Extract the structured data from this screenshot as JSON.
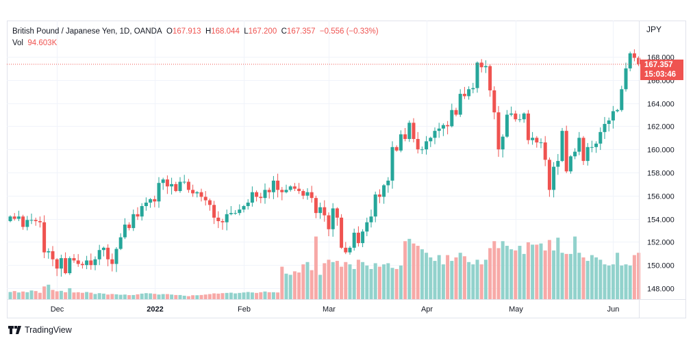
{
  "header": {
    "symbol": "British Pound / Japanese Yen, 1D, OANDA",
    "o_label": "O",
    "o": "167.913",
    "h_label": "H",
    "h": "168.044",
    "l_label": "L",
    "l": "167.200",
    "c_label": "C",
    "c": "167.357",
    "change": "−0.556 (−0.33%)",
    "vol_label": "Vol",
    "vol": "94.603K"
  },
  "price_axis": {
    "currency": "JPY",
    "current_price": "167.357",
    "countdown": "15:03:46"
  },
  "branding": {
    "logo_text": "TradingView"
  },
  "colors": {
    "up": "#26a69a",
    "down": "#ef5350",
    "vol_up": "#92d2cc",
    "vol_down": "#f7a9a7"
  },
  "chart_data": {
    "type": "candlestick",
    "title": "British Pound / Japanese Yen, 1D, OANDA",
    "ylim": [
      147,
      170
    ],
    "y_ticks": [
      "148.000",
      "150.000",
      "152.000",
      "154.000",
      "156.000",
      "158.000",
      "160.000",
      "162.000",
      "164.000",
      "166.000",
      "168.000"
    ],
    "x_ticks": [
      {
        "label": "Dec",
        "index": 11
      },
      {
        "label": "2022",
        "index": 34
      },
      {
        "label": "Feb",
        "index": 55
      },
      {
        "label": "Mar",
        "index": 75
      },
      {
        "label": "Apr",
        "index": 98
      },
      {
        "label": "May",
        "index": 119
      },
      {
        "label": "Jun",
        "index": 142
      }
    ],
    "first_open": 153.8,
    "closes": [
      154.2,
      154.0,
      154.2,
      153.3,
      153.9,
      153.9,
      153.8,
      153.7,
      151.1,
      151.2,
      150.5,
      149.7,
      150.6,
      149.3,
      150.6,
      150.4,
      150.1,
      150.0,
      150.4,
      150.0,
      150.5,
      151.3,
      151.5,
      150.5,
      150.1,
      151.4,
      152.4,
      153.5,
      153.2,
      154.4,
      154.2,
      155.1,
      155.4,
      155.7,
      155.5,
      157.1,
      157.4,
      156.8,
      157.0,
      156.4,
      157.2,
      157.2,
      156.5,
      156.2,
      156.3,
      155.9,
      155.6,
      155.2,
      154.1,
      153.8,
      153.7,
      154.4,
      154.5,
      154.5,
      154.8,
      155.1,
      155.4,
      156.3,
      155.9,
      155.8,
      156.5,
      156.3,
      157.3,
      156.5,
      156.3,
      156.5,
      156.8,
      156.6,
      156.4,
      156.0,
      156.3,
      155.8,
      154.5,
      155.0,
      154.3,
      153.1,
      154.9,
      154.1,
      151.5,
      151.1,
      151.5,
      152.8,
      151.9,
      152.9,
      153.7,
      154.2,
      156.1,
      155.9,
      156.9,
      157.3,
      160.2,
      159.9,
      161.3,
      160.9,
      162.3,
      160.9,
      160.0,
      160.0,
      160.7,
      161.0,
      161.6,
      161.8,
      162.1,
      162.0,
      163.4,
      163.0,
      164.8,
      164.6,
      165.2,
      165.3,
      167.5,
      167.1,
      167.2,
      165.1,
      163.2,
      160.0,
      161.1,
      163.0,
      163.1,
      162.6,
      162.6,
      163.1,
      160.8,
      161.0,
      160.6,
      160.6,
      159.1,
      156.5,
      158.5,
      159.0,
      161.6,
      158.1,
      159.4,
      159.8,
      161.0,
      159.0,
      160.2,
      160.2,
      160.5,
      161.5,
      162.2,
      162.5,
      163.3,
      163.4,
      165.2,
      167.0,
      168.3,
      167.913,
      167.357
    ],
    "last_high": 168.044,
    "last_low": 167.2,
    "volume_unit": "K",
    "volumes": [
      62,
      70,
      58,
      66,
      60,
      75,
      70,
      55,
      110,
      125,
      80,
      68,
      72,
      60,
      95,
      58,
      60,
      55,
      62,
      56,
      45,
      52,
      48,
      40,
      45,
      42,
      38,
      40,
      35,
      36,
      42,
      48,
      52,
      50,
      46,
      40,
      44,
      44,
      40,
      36,
      36,
      30,
      26,
      34,
      34,
      36,
      40,
      44,
      50,
      48,
      52,
      54,
      56,
      50,
      54,
      58,
      62,
      58,
      54,
      60,
      66,
      60,
      60,
      58,
      280,
      220,
      210,
      240,
      230,
      300,
      320,
      250,
      540,
      210,
      310,
      340,
      320,
      330,
      280,
      320,
      300,
      260,
      340,
      320,
      290,
      260,
      310,
      280,
      300,
      310,
      270,
      260,
      290,
      500,
      520,
      480,
      460,
      430,
      400,
      360,
      330,
      380,
      300,
      380,
      330,
      360,
      400,
      370,
      320,
      300,
      340,
      300,
      340,
      440,
      500,
      440,
      500,
      460,
      430,
      420,
      460,
      390,
      490,
      470,
      470,
      480,
      420,
      510,
      420,
      530,
      400,
      390,
      390,
      540,
      400,
      360,
      330,
      380,
      360,
      340,
      300,
      290,
      300,
      400,
      290,
      300,
      290,
      380,
      400,
      94.603
    ]
  }
}
